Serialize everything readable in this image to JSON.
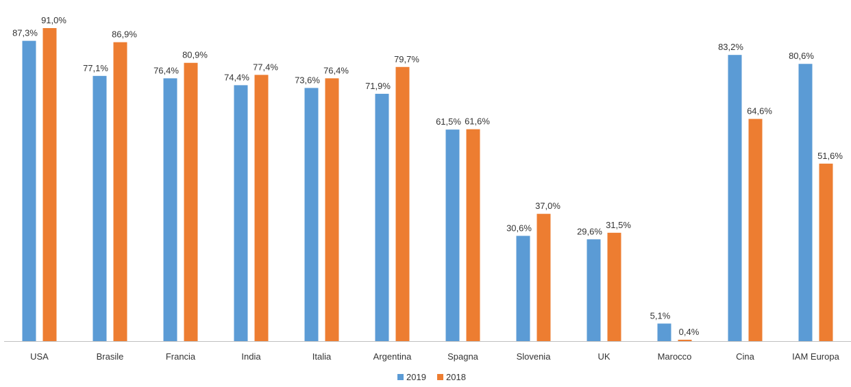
{
  "chart_data": {
    "type": "bar",
    "title": "",
    "xlabel": "",
    "ylabel": "",
    "ylim": [
      0,
      92
    ],
    "grid": false,
    "legend_position": "bottom",
    "categories": [
      "USA",
      "Brasile",
      "Francia",
      "India",
      "Italia",
      "Argentina",
      "Spagna",
      "Slovenia",
      "UK",
      "Marocco",
      "Cina",
      "IAM Europa"
    ],
    "series": [
      {
        "name": "2019",
        "color": "#5b9bd5",
        "values": [
          87.3,
          77.1,
          76.4,
          74.4,
          73.6,
          71.9,
          61.5,
          30.6,
          29.6,
          5.1,
          83.2,
          80.6
        ],
        "labels": [
          "87,3%",
          "77,1%",
          "76,4%",
          "74,4%",
          "73,6%",
          "71,9%",
          "61,5%",
          "30,6%",
          "29,6%",
          "5,1%",
          "83,2%",
          "80,6%"
        ]
      },
      {
        "name": "2018",
        "color": "#ed7d31",
        "values": [
          91.0,
          86.9,
          80.9,
          77.4,
          76.4,
          79.7,
          61.6,
          37.0,
          31.5,
          0.4,
          64.6,
          51.6
        ],
        "labels": [
          "91,0%",
          "86,9%",
          "80,9%",
          "77,4%",
          "76,4%",
          "79,7%",
          "61,6%",
          "37,0%",
          "31,5%",
          "0,4%",
          "64,6%",
          "51,6%"
        ]
      }
    ]
  }
}
